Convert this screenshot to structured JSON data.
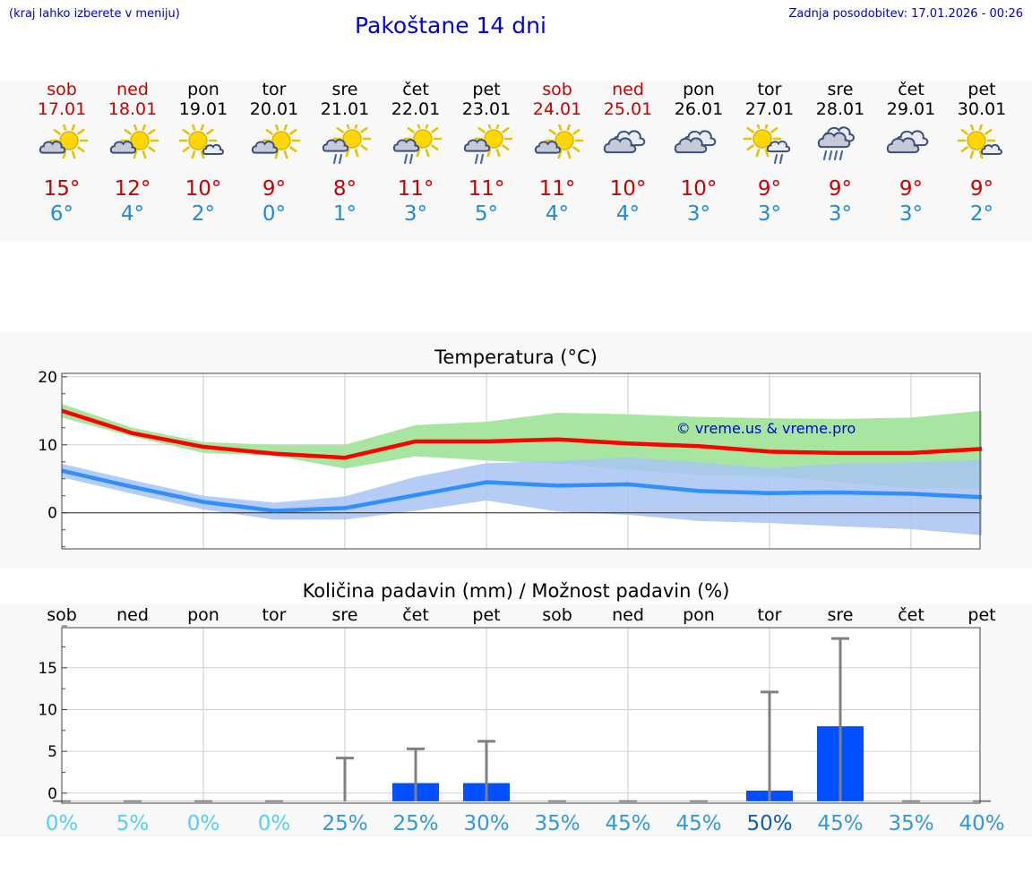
{
  "header": {
    "left_note": "(kraj lahko izberete v meniju)",
    "title": "Pakoštane 14 dni",
    "update": "Zadnja posodobitev: 17.01.2026 - 00:26"
  },
  "forecast": [
    {
      "day": "sob",
      "date": "17.01",
      "icon": "partly-sunny-icon",
      "hi": "15°",
      "lo": "6°",
      "weekend": true
    },
    {
      "day": "ned",
      "date": "18.01",
      "icon": "partly-sunny-icon",
      "hi": "12°",
      "lo": "4°",
      "weekend": true
    },
    {
      "day": "pon",
      "date": "19.01",
      "icon": "sun-small-cloud-icon",
      "hi": "10°",
      "lo": "2°",
      "weekend": false
    },
    {
      "day": "tor",
      "date": "20.01",
      "icon": "partly-sunny-icon",
      "hi": "9°",
      "lo": "0°",
      "weekend": false
    },
    {
      "day": "sre",
      "date": "21.01",
      "icon": "sun-cloud-light-rain-icon",
      "hi": "8°",
      "lo": "1°",
      "weekend": false
    },
    {
      "day": "čet",
      "date": "22.01",
      "icon": "sun-cloud-light-rain-icon",
      "hi": "11°",
      "lo": "3°",
      "weekend": false
    },
    {
      "day": "pet",
      "date": "23.01",
      "icon": "sun-cloud-light-rain-icon",
      "hi": "11°",
      "lo": "5°",
      "weekend": false
    },
    {
      "day": "sob",
      "date": "24.01",
      "icon": "partly-sunny-icon",
      "hi": "11°",
      "lo": "4°",
      "weekend": true
    },
    {
      "day": "ned",
      "date": "25.01",
      "icon": "cloudy-icon",
      "hi": "10°",
      "lo": "4°",
      "weekend": true
    },
    {
      "day": "pon",
      "date": "26.01",
      "icon": "cloudy-icon",
      "hi": "10°",
      "lo": "3°",
      "weekend": false
    },
    {
      "day": "tor",
      "date": "27.01",
      "icon": "sun-small-cloud-rain-icon",
      "hi": "9°",
      "lo": "3°",
      "weekend": false
    },
    {
      "day": "sre",
      "date": "28.01",
      "icon": "cloud-rain-icon",
      "hi": "9°",
      "lo": "3°",
      "weekend": false
    },
    {
      "day": "čet",
      "date": "29.01",
      "icon": "cloudy-icon",
      "hi": "9°",
      "lo": "3°",
      "weekend": false
    },
    {
      "day": "pet",
      "date": "30.01",
      "icon": "sun-small-cloud-icon",
      "hi": "9°",
      "lo": "2°",
      "weekend": false
    }
  ],
  "colors": {
    "hi": "#cc0000",
    "lo": "#1e8be0",
    "max_line": "#ff0000",
    "min_line": "#2f8fff",
    "max_band": "#a6e6a0",
    "min_band": "#a8c4f2",
    "overlap_band": "#83c9a8",
    "bar": "#0050ff",
    "whisker": "#808080"
  },
  "chart_data": [
    {
      "type": "line",
      "title": "Temperatura (°C)",
      "watermark": "© vreme.us & vreme.pro",
      "ylim": [
        -5.3,
        20.5
      ],
      "yticks": [
        0,
        10,
        20
      ],
      "x": [
        0,
        1,
        2,
        3,
        4,
        5,
        6,
        7,
        8,
        9,
        10,
        11,
        12,
        13
      ],
      "series": [
        {
          "name": "max",
          "values": [
            15,
            11.7,
            9.7,
            8.7,
            8.1,
            10.5,
            10.5,
            10.8,
            10.2,
            9.8,
            9.0,
            8.8,
            8.8,
            9.4
          ],
          "band_low": [
            14,
            11.2,
            8.8,
            8.4,
            6.5,
            8.3,
            7.7,
            7.2,
            6.3,
            5.6,
            5.4,
            4.5,
            3.6,
            3.6
          ],
          "band_high": [
            16,
            12.5,
            10.4,
            10,
            10,
            12.9,
            13.4,
            14.7,
            14.5,
            14.1,
            13.9,
            13.8,
            14,
            15
          ]
        },
        {
          "name": "min",
          "values": [
            6.2,
            3.8,
            1.6,
            0.3,
            0.7,
            2.6,
            4.5,
            4.0,
            4.2,
            3.2,
            2.9,
            3.0,
            2.8,
            2.3
          ],
          "band_low": [
            5.2,
            2.8,
            0.5,
            -1.0,
            -1.0,
            0.3,
            1.8,
            0.2,
            -0.3,
            -1.2,
            -1.5,
            -2.0,
            -2.4,
            -3.3
          ],
          "band_high": [
            7.2,
            4.8,
            2.5,
            1.5,
            2.4,
            5.3,
            7.3,
            7.6,
            8.2,
            7.4,
            6.6,
            7.2,
            7.4,
            7.8
          ]
        }
      ]
    },
    {
      "type": "bar",
      "title": "Količina padavin (mm) / Možnost padavin (%)",
      "categories": [
        "sob",
        "ned",
        "pon",
        "tor",
        "sre",
        "čet",
        "pet",
        "sob",
        "ned",
        "pon",
        "tor",
        "sre",
        "čet",
        "pet"
      ],
      "values": [
        0,
        0,
        0,
        0,
        0,
        1.2,
        1.2,
        0,
        0,
        0,
        0.3,
        8,
        0,
        0
      ],
      "whisker_max": [
        0,
        0,
        0,
        0,
        4.2,
        5.3,
        6.2,
        0,
        0,
        0,
        12.1,
        18.5,
        0,
        0
      ],
      "ylim": [
        -1.2,
        19.8
      ],
      "yticks": [
        0,
        5,
        10,
        15
      ],
      "probability": [
        "0%",
        "5%",
        "0%",
        "0%",
        "25%",
        "25%",
        "30%",
        "35%",
        "45%",
        "45%",
        "50%",
        "45%",
        "35%",
        "40%"
      ],
      "probability_colors": [
        "#55d0ee",
        "#55d0ee",
        "#55d0ee",
        "#55d0ee",
        "#3399dd",
        "#3399dd",
        "#3399dd",
        "#3399dd",
        "#3399dd",
        "#3399dd",
        "#1160b8",
        "#3399dd",
        "#3399dd",
        "#3399dd"
      ]
    }
  ]
}
